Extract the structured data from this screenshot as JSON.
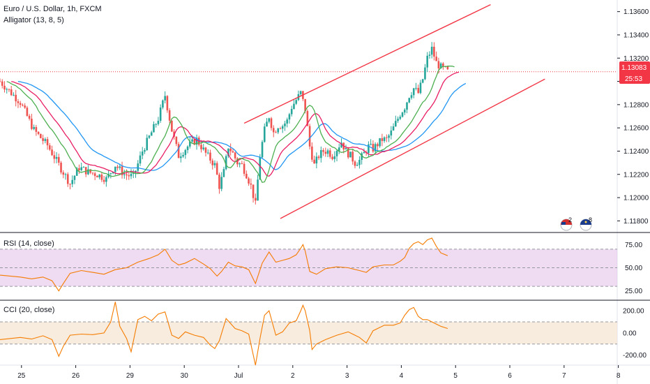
{
  "colors": {
    "bull": "#26a69a",
    "bear": "#ef5350",
    "channel": "#f23645",
    "jaw": "#2196f3",
    "teeth": "#e91e63",
    "lips": "#4caf50",
    "osc": "#f57c00",
    "rsi_band": "#e1bee7",
    "cci_band": "#f5e6d3",
    "price_tag": "#f23645"
  },
  "header": {
    "symbol": "Euro / U.S. Dollar, 1h, FXCM",
    "indicator": "Alligator (13, 8, 5)"
  },
  "price_tag": {
    "price": "1.13083",
    "countdown": "25:53"
  },
  "panes": {
    "rsi": {
      "label": "RSI (14, close)",
      "ticks": [
        "75.00",
        "50.00",
        "25.00"
      ]
    },
    "cci": {
      "label": "CCI (20, close)",
      "ticks": [
        "200.00",
        "0.00",
        "-200.00"
      ]
    }
  },
  "markers": [
    {
      "icon": "us-flag-icon",
      "count": "2"
    },
    {
      "icon": "eu-flag-icon",
      "count": "8"
    }
  ],
  "chart_data": [
    {
      "type": "candlestick",
      "title": "Euro / U.S. Dollar, 1h, FXCM",
      "ylim": [
        1.117,
        1.137
      ],
      "y_ticks": [
        1.136,
        1.134,
        1.132,
        1.13,
        1.128,
        1.126,
        1.124,
        1.122,
        1.12,
        1.118
      ],
      "y_tick_labels": [
        "1.13600",
        "1.13400",
        "1.13200",
        "1.13000",
        "1.12800",
        "1.12600",
        "1.12400",
        "1.12200",
        "1.12000",
        "1.11800"
      ],
      "x_tick_labels": [
        "25",
        "26",
        "29",
        "30",
        "Jul",
        "2",
        "3",
        "4",
        "5",
        "6",
        "7",
        "8"
      ],
      "x_tick_pos": [
        0.5,
        24.5,
        48.5,
        72.5,
        96.5,
        120.5,
        144.5,
        168.5,
        192.5,
        216.5,
        240.5,
        264.5
      ],
      "x_range": [
        -9,
        264
      ],
      "last_price": 1.13083,
      "close_path": [
        [
          -9,
          1.13
        ],
        [
          -4,
          1.129
        ],
        [
          0,
          1.1282
        ],
        [
          6,
          1.1258
        ],
        [
          12,
          1.1245
        ],
        [
          18,
          1.1225
        ],
        [
          22,
          1.1212
        ],
        [
          26,
          1.1226
        ],
        [
          30,
          1.1222
        ],
        [
          34,
          1.122
        ],
        [
          38,
          1.1216
        ],
        [
          42,
          1.1228
        ],
        [
          46,
          1.122
        ],
        [
          50,
          1.1218
        ],
        [
          54,
          1.124
        ],
        [
          58,
          1.1256
        ],
        [
          61,
          1.1268
        ],
        [
          64,
          1.1288
        ],
        [
          67,
          1.1258
        ],
        [
          70,
          1.1236
        ],
        [
          74,
          1.1244
        ],
        [
          78,
          1.125
        ],
        [
          82,
          1.1238
        ],
        [
          86,
          1.1228
        ],
        [
          88,
          1.121
        ],
        [
          90,
          1.1222
        ],
        [
          92,
          1.1244
        ],
        [
          94,
          1.1238
        ],
        [
          96,
          1.123
        ],
        [
          98,
          1.1228
        ],
        [
          100,
          1.122
        ],
        [
          102,
          1.121
        ],
        [
          104,
          1.1194
        ],
        [
          106,
          1.1236
        ],
        [
          108,
          1.1258
        ],
        [
          110,
          1.127
        ],
        [
          112,
          1.1256
        ],
        [
          114,
          1.1262
        ],
        [
          116,
          1.1262
        ],
        [
          118,
          1.1266
        ],
        [
          120,
          1.1278
        ],
        [
          122,
          1.1284
        ],
        [
          124,
          1.129
        ],
        [
          126,
          1.1276
        ],
        [
          128,
          1.1244
        ],
        [
          130,
          1.1228
        ],
        [
          132,
          1.1236
        ],
        [
          134,
          1.124
        ],
        [
          136,
          1.124
        ],
        [
          138,
          1.1236
        ],
        [
          140,
          1.1242
        ],
        [
          142,
          1.1248
        ],
        [
          144,
          1.124
        ],
        [
          146,
          1.1236
        ],
        [
          148,
          1.123
        ],
        [
          150,
          1.1232
        ],
        [
          152,
          1.1238
        ],
        [
          154,
          1.1244
        ],
        [
          156,
          1.1242
        ],
        [
          158,
          1.1246
        ],
        [
          160,
          1.125
        ],
        [
          162,
          1.125
        ],
        [
          164,
          1.1256
        ],
        [
          166,
          1.1264
        ],
        [
          168,
          1.1272
        ],
        [
          170,
          1.1278
        ],
        [
          172,
          1.1288
        ],
        [
          174,
          1.1294
        ],
        [
          176,
          1.129
        ],
        [
          178,
          1.1302
        ],
        [
          180,
          1.132
        ],
        [
          182,
          1.1328
        ],
        [
          184,
          1.1316
        ],
        [
          186,
          1.1312
        ],
        [
          188,
          1.131
        ],
        [
          189,
          1.13083
        ]
      ],
      "channel": {
        "upper": [
          [
            99,
            1.1264
          ],
          [
            208,
            1.1366
          ]
        ],
        "lower": [
          [
            115,
            1.1182
          ],
          [
            232,
            1.1302
          ]
        ]
      },
      "alligator": {
        "params": [
          13,
          8,
          5
        ],
        "jaw_shift": 8,
        "teeth_shift": 5,
        "lips_shift": 3
      }
    },
    {
      "type": "line",
      "title": "RSI (14, close)",
      "ylim": [
        15,
        88
      ],
      "y_ticks": [
        75,
        50,
        25
      ],
      "band": [
        30,
        70
      ],
      "x_range": [
        -9,
        264
      ],
      "series": [
        {
          "values": [
            [
              -9,
              42
            ],
            [
              0,
              40
            ],
            [
              5,
              38
            ],
            [
              10,
              40
            ],
            [
              14,
              36
            ],
            [
              17,
              25
            ],
            [
              19,
              33
            ],
            [
              22,
              44
            ],
            [
              27,
              47
            ],
            [
              32,
              45
            ],
            [
              37,
              43
            ],
            [
              42,
              48
            ],
            [
              47,
              50
            ],
            [
              52,
              56
            ],
            [
              57,
              60
            ],
            [
              61,
              64
            ],
            [
              64,
              70
            ],
            [
              67,
              58
            ],
            [
              70,
              53
            ],
            [
              73,
              55
            ],
            [
              77,
              60
            ],
            [
              81,
              54
            ],
            [
              84,
              49
            ],
            [
              87,
              41
            ],
            [
              89,
              46
            ],
            [
              92,
              56
            ],
            [
              95,
              52
            ],
            [
              98,
              51
            ],
            [
              101,
              48
            ],
            [
              104,
              33
            ],
            [
              107,
              55
            ],
            [
              110,
              67
            ],
            [
              113,
              56
            ],
            [
              116,
              58
            ],
            [
              119,
              60
            ],
            [
              122,
              64
            ],
            [
              124,
              71
            ],
            [
              125,
              75
            ],
            [
              126,
              68
            ],
            [
              128,
              46
            ],
            [
              131,
              43
            ],
            [
              135,
              49
            ],
            [
              140,
              51
            ],
            [
              145,
              50
            ],
            [
              150,
              47
            ],
            [
              153,
              45
            ],
            [
              156,
              51
            ],
            [
              161,
              53
            ],
            [
              165,
              53
            ],
            [
              168,
              57
            ],
            [
              170,
              61
            ],
            [
              172,
              71
            ],
            [
              174,
              76
            ],
            [
              176,
              78
            ],
            [
              178,
              75
            ],
            [
              180,
              80
            ],
            [
              182,
              82
            ],
            [
              184,
              73
            ],
            [
              186,
              66
            ],
            [
              189,
              63
            ]
          ]
        }
      ]
    },
    {
      "type": "line",
      "title": "CCI (20, close)",
      "ylim": [
        -290,
        295
      ],
      "y_ticks": [
        200,
        0,
        -200
      ],
      "band": [
        100,
        -100
      ],
      "x_range": [
        -9,
        264
      ],
      "series": [
        {
          "values": [
            [
              -9,
              -60
            ],
            [
              0,
              -40
            ],
            [
              5,
              -55
            ],
            [
              10,
              -25
            ],
            [
              14,
              -60
            ],
            [
              17,
              -210
            ],
            [
              19,
              -120
            ],
            [
              22,
              -20
            ],
            [
              27,
              -10
            ],
            [
              32,
              -15
            ],
            [
              37,
              0
            ],
            [
              40,
              100
            ],
            [
              42,
              280
            ],
            [
              44,
              60
            ],
            [
              47,
              -50
            ],
            [
              49,
              -170
            ],
            [
              52,
              120
            ],
            [
              55,
              150
            ],
            [
              58,
              110
            ],
            [
              61,
              170
            ],
            [
              64,
              190
            ],
            [
              67,
              -20
            ],
            [
              70,
              -50
            ],
            [
              73,
              10
            ],
            [
              77,
              -20
            ],
            [
              81,
              -40
            ],
            [
              84,
              -110
            ],
            [
              86,
              -140
            ],
            [
              88,
              -70
            ],
            [
              91,
              130
            ],
            [
              95,
              40
            ],
            [
              98,
              20
            ],
            [
              101,
              -10
            ],
            [
              104,
              -290
            ],
            [
              106,
              -50
            ],
            [
              108,
              160
            ],
            [
              110,
              200
            ],
            [
              113,
              -20
            ],
            [
              116,
              10
            ],
            [
              119,
              90
            ],
            [
              122,
              110
            ],
            [
              124,
              200
            ],
            [
              125,
              250
            ],
            [
              126,
              200
            ],
            [
              128,
              20
            ],
            [
              129,
              -150
            ],
            [
              131,
              -100
            ],
            [
              135,
              -60
            ],
            [
              140,
              -20
            ],
            [
              145,
              10
            ],
            [
              150,
              -40
            ],
            [
              153,
              -90
            ],
            [
              156,
              20
            ],
            [
              161,
              70
            ],
            [
              165,
              70
            ],
            [
              168,
              90
            ],
            [
              170,
              160
            ],
            [
              172,
              210
            ],
            [
              174,
              230
            ],
            [
              176,
              150
            ],
            [
              178,
              120
            ],
            [
              180,
              120
            ],
            [
              182,
              100
            ],
            [
              184,
              80
            ],
            [
              186,
              60
            ],
            [
              189,
              40
            ]
          ]
        }
      ]
    }
  ]
}
